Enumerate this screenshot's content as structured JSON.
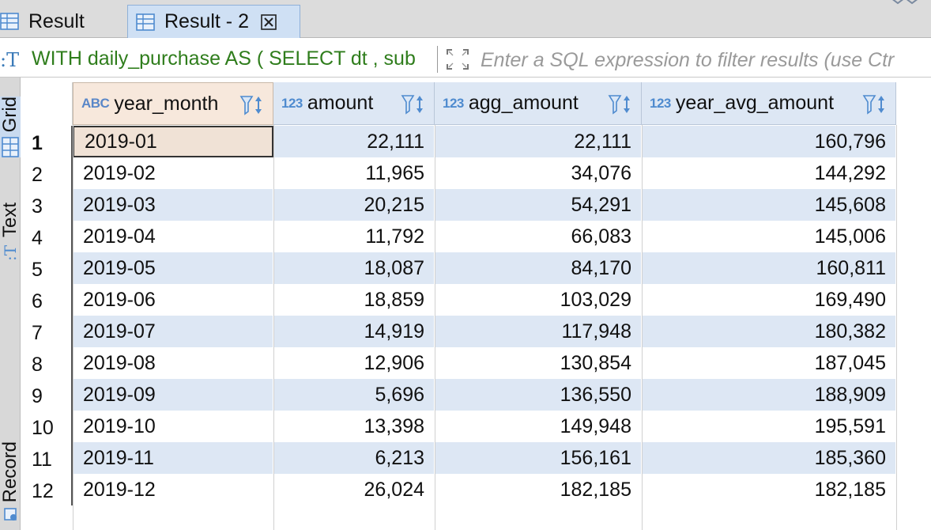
{
  "tabs": [
    {
      "label": "Result",
      "active": false
    },
    {
      "label": "Result - 2",
      "active": true
    }
  ],
  "query": {
    "text": "WITH daily_purchase AS ( SELECT dt , sub",
    "filter_placeholder": "Enter a SQL expression to filter results (use Ctr"
  },
  "side_tabs": {
    "grid": "Grid",
    "text": "Text",
    "record": "Record"
  },
  "columns": [
    {
      "type": "ABC",
      "name": "year_month",
      "align": "left"
    },
    {
      "type": "123",
      "name": "amount",
      "align": "right"
    },
    {
      "type": "123",
      "name": "agg_amount",
      "align": "right"
    },
    {
      "type": "123",
      "name": "year_avg_amount",
      "align": "right"
    }
  ],
  "rows": [
    {
      "n": "1",
      "cells": [
        "2019-01",
        "22,111",
        "22,111",
        "160,796"
      ]
    },
    {
      "n": "2",
      "cells": [
        "2019-02",
        "11,965",
        "34,076",
        "144,292"
      ]
    },
    {
      "n": "3",
      "cells": [
        "2019-03",
        "20,215",
        "54,291",
        "145,608"
      ]
    },
    {
      "n": "4",
      "cells": [
        "2019-04",
        "11,792",
        "66,083",
        "145,006"
      ]
    },
    {
      "n": "5",
      "cells": [
        "2019-05",
        "18,087",
        "84,170",
        "160,811"
      ]
    },
    {
      "n": "6",
      "cells": [
        "2019-06",
        "18,859",
        "103,029",
        "169,490"
      ]
    },
    {
      "n": "7",
      "cells": [
        "2019-07",
        "14,919",
        "117,948",
        "180,382"
      ]
    },
    {
      "n": "8",
      "cells": [
        "2019-08",
        "12,906",
        "130,854",
        "187,045"
      ]
    },
    {
      "n": "9",
      "cells": [
        "2019-09",
        "5,696",
        "136,550",
        "188,909"
      ]
    },
    {
      "n": "10",
      "cells": [
        "2019-10",
        "13,398",
        "149,948",
        "195,591"
      ]
    },
    {
      "n": "11",
      "cells": [
        "2019-11",
        "6,213",
        "156,161",
        "185,360"
      ]
    },
    {
      "n": "12",
      "cells": [
        "2019-12",
        "26,024",
        "182,185",
        "182,185"
      ]
    }
  ],
  "colors": {
    "accent": "#4f8bcf",
    "row_alt": "#dde7f4",
    "selected_cell": "#f0e2d6",
    "query_text": "#2f7d1c"
  }
}
